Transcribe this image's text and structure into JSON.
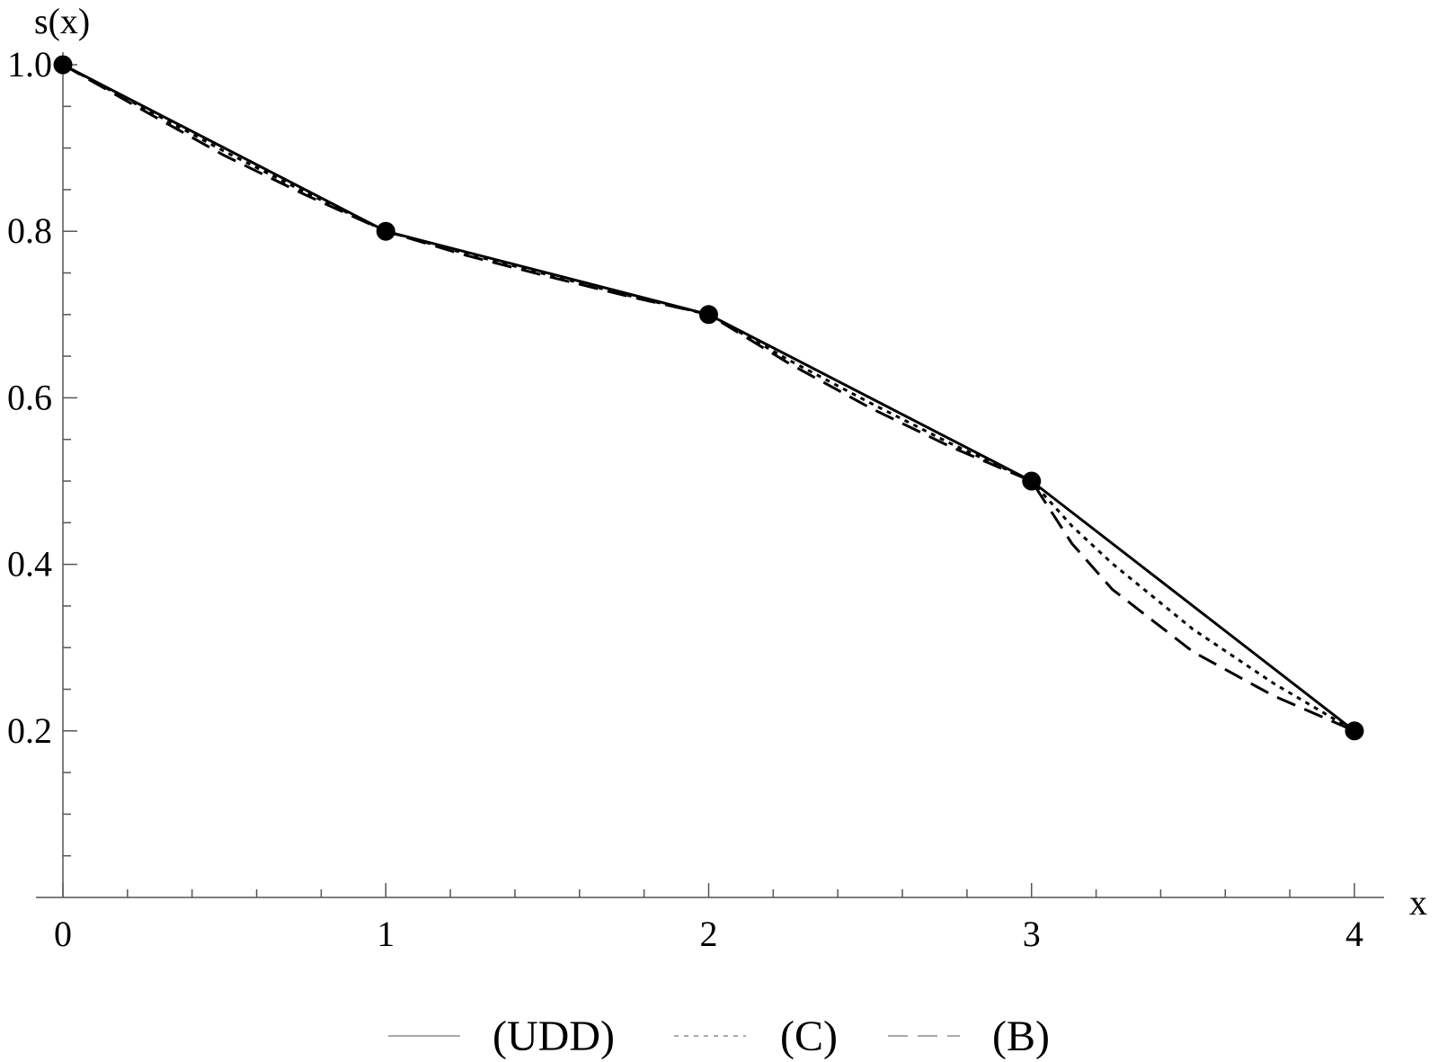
{
  "chart_data": {
    "type": "line",
    "title": "",
    "xlabel": "x",
    "ylabel": "s(x)",
    "xlim": [
      0,
      4
    ],
    "ylim": [
      0,
      1.0
    ],
    "x_ticks": [
      "0",
      "1",
      "2",
      "3",
      "4"
    ],
    "y_ticks": [
      "0.2",
      "0.4",
      "0.6",
      "0.8",
      "1.0"
    ],
    "grid": false,
    "legend_position": "bottom",
    "markers": {
      "x": [
        0,
        1,
        2,
        3,
        4
      ],
      "y": [
        1.0,
        0.8,
        0.7,
        0.5,
        0.2
      ]
    },
    "series": [
      {
        "name": "(UDD)",
        "style": "solid",
        "x": [
          0,
          1,
          2,
          3,
          4
        ],
        "y": [
          1.0,
          0.8,
          0.7,
          0.5,
          0.2
        ]
      },
      {
        "name": "(C)",
        "style": "dotted",
        "x": [
          0,
          0.25,
          0.5,
          0.75,
          1,
          1.25,
          1.5,
          1.75,
          2,
          2.25,
          2.5,
          2.75,
          3,
          3.125,
          3.25,
          3.5,
          3.75,
          4
        ],
        "y": [
          1.0,
          0.948,
          0.896,
          0.847,
          0.8,
          0.773,
          0.748,
          0.723,
          0.7,
          0.645,
          0.594,
          0.545,
          0.5,
          0.446,
          0.401,
          0.322,
          0.257,
          0.2
        ]
      },
      {
        "name": "(B)",
        "style": "dashed",
        "x": [
          0,
          0.25,
          0.5,
          0.75,
          1,
          1.25,
          1.5,
          1.75,
          2,
          2.25,
          2.5,
          2.75,
          3,
          3.125,
          3.25,
          3.5,
          3.75,
          4
        ],
        "y": [
          1.0,
          0.945,
          0.891,
          0.844,
          0.8,
          0.771,
          0.746,
          0.722,
          0.7,
          0.641,
          0.588,
          0.541,
          0.5,
          0.425,
          0.37,
          0.295,
          0.242,
          0.2
        ]
      }
    ]
  }
}
